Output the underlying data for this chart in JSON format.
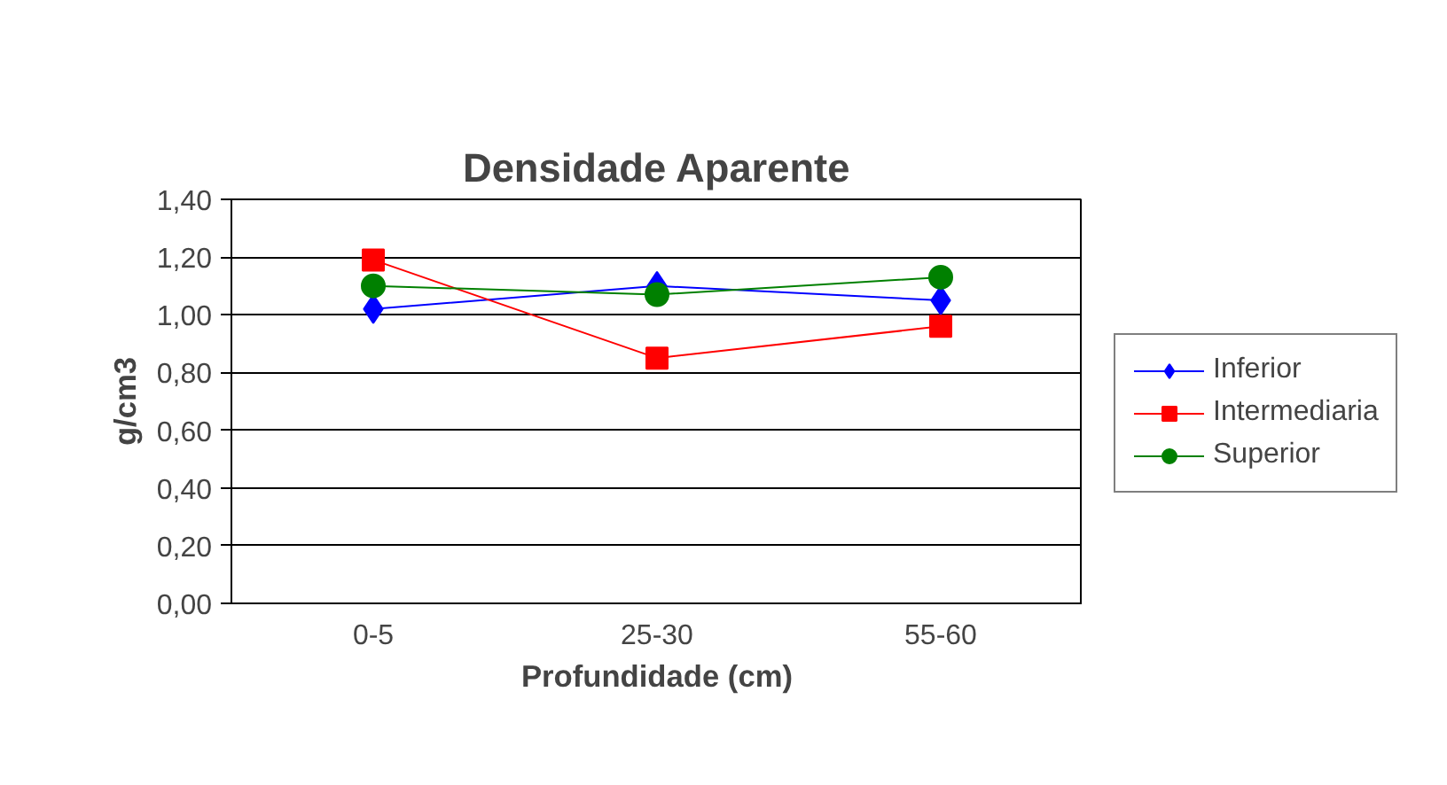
{
  "chart_data": {
    "type": "line",
    "title": "Densidade Aparente",
    "xlabel": "Profundidade (cm)",
    "ylabel": "g/cm3",
    "categories": [
      "0-5",
      "25-30",
      "55-60"
    ],
    "series": [
      {
        "name": "Inferior",
        "color": "#0000ff",
        "marker": "diamond",
        "values": [
          1.02,
          1.1,
          1.05
        ]
      },
      {
        "name": "Intermediaria",
        "color": "#ff0000",
        "marker": "square",
        "values": [
          1.19,
          0.85,
          0.96
        ]
      },
      {
        "name": "Superior",
        "color": "#008000",
        "marker": "circle",
        "values": [
          1.1,
          1.07,
          1.13
        ]
      }
    ],
    "ylim": [
      0,
      1.4
    ],
    "yticks": [
      {
        "value": 0,
        "label": "0,00"
      },
      {
        "value": 0.2,
        "label": "0,20"
      },
      {
        "value": 0.4,
        "label": "0,40"
      },
      {
        "value": 0.6,
        "label": "0,60"
      },
      {
        "value": 0.8,
        "label": "0,80"
      },
      {
        "value": 1.0,
        "label": "1,00"
      },
      {
        "value": 1.2,
        "label": "1,20"
      },
      {
        "value": 1.4,
        "label": "1,40"
      }
    ],
    "grid": "y",
    "legend": "right",
    "line_style": "solid"
  }
}
